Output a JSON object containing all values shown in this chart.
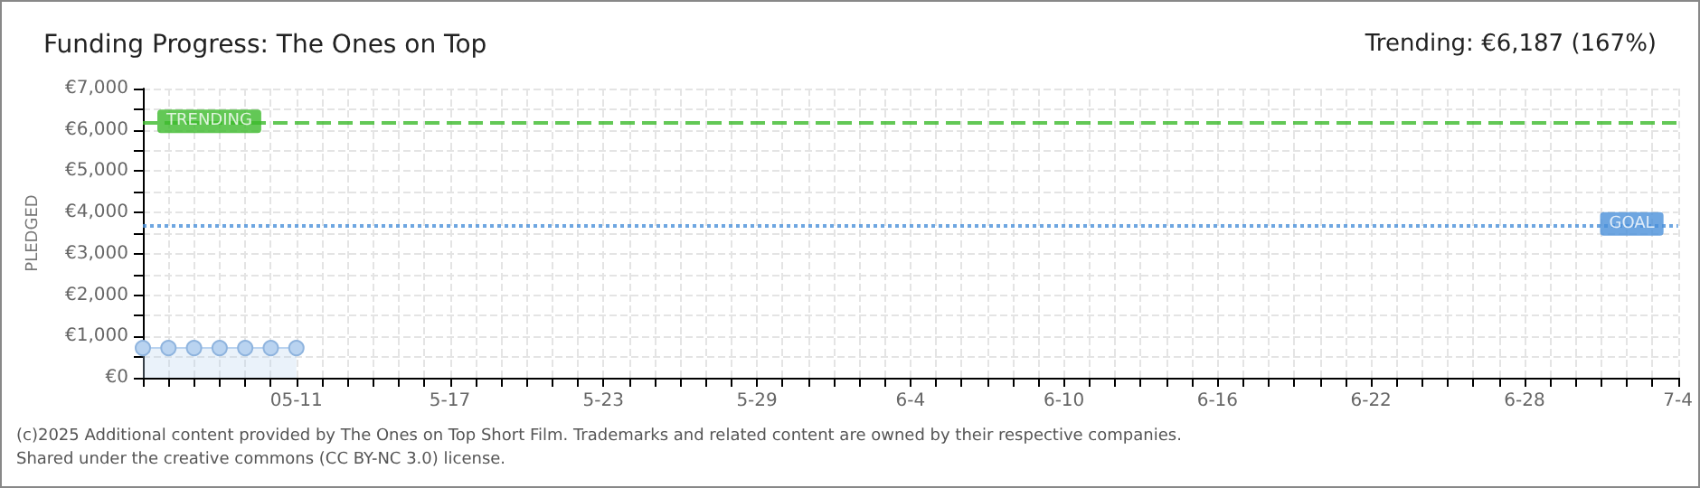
{
  "chart_data": {
    "type": "area",
    "title": "Funding Progress: The Ones on Top",
    "ylabel": "PLEDGED",
    "annotations": [
      "Trending: €6,187 (167%)",
      "(c)2025 Additional content provided by The Ones on Top Short Film. Trademarks and related content are owned by their respective companies.",
      "Shared under the creative commons (CC BY-NC 3.0) license."
    ],
    "x": [
      "--05-05",
      "--05-06",
      "--05-07",
      "--05-08",
      "--05-09",
      "--05-10",
      "--05-11"
    ],
    "series": [
      {
        "color": "#b9d3f0",
        "values": [
          720,
          720,
          720,
          720,
          720,
          720,
          720
        ]
      }
    ],
    "marker": "circle",
    "grid": true,
    "xlim": [
      "--05-05",
      "--07-04"
    ],
    "xticks": [
      {
        "value": "--05-05",
        "label": null
      },
      {
        "value": "--05-06",
        "label": null
      },
      {
        "value": "--05-07",
        "label": null
      },
      {
        "value": "--05-08",
        "label": null
      },
      {
        "value": "--05-09",
        "label": null
      },
      {
        "value": "--05-10",
        "label": null
      },
      {
        "value": "--05-11",
        "label": "05-11"
      },
      {
        "value": "--05-12",
        "label": null
      },
      {
        "value": "--05-13",
        "label": null
      },
      {
        "value": "--05-14",
        "label": null
      },
      {
        "value": "--05-15",
        "label": null
      },
      {
        "value": "--05-16",
        "label": null
      },
      {
        "value": "--05-17",
        "label": "5-17"
      },
      {
        "value": "--05-18",
        "label": null
      },
      {
        "value": "--05-19",
        "label": null
      },
      {
        "value": "--05-20",
        "label": null
      },
      {
        "value": "--05-21",
        "label": null
      },
      {
        "value": "--05-22",
        "label": null
      },
      {
        "value": "--05-23",
        "label": "5-23"
      },
      {
        "value": "--05-24",
        "label": null
      },
      {
        "value": "--05-25",
        "label": null
      },
      {
        "value": "--05-26",
        "label": null
      },
      {
        "value": "--05-27",
        "label": null
      },
      {
        "value": "--05-28",
        "label": null
      },
      {
        "value": "--05-29",
        "label": "5-29"
      },
      {
        "value": "--05-30",
        "label": null
      },
      {
        "value": "--05-31",
        "label": null
      },
      {
        "value": "--06-01",
        "label": null
      },
      {
        "value": "--06-02",
        "label": null
      },
      {
        "value": "--06-03",
        "label": null
      },
      {
        "value": "--06-04",
        "label": "6-4"
      },
      {
        "value": "--06-05",
        "label": null
      },
      {
        "value": "--06-06",
        "label": null
      },
      {
        "value": "--06-07",
        "label": null
      },
      {
        "value": "--06-08",
        "label": null
      },
      {
        "value": "--06-09",
        "label": null
      },
      {
        "value": "--06-10",
        "label": "6-10"
      },
      {
        "value": "--06-11",
        "label": null
      },
      {
        "value": "--06-12",
        "label": null
      },
      {
        "value": "--06-13",
        "label": null
      },
      {
        "value": "--06-14",
        "label": null
      },
      {
        "value": "--06-15",
        "label": null
      },
      {
        "value": "--06-16",
        "label": "6-16"
      },
      {
        "value": "--06-17",
        "label": null
      },
      {
        "value": "--06-18",
        "label": null
      },
      {
        "value": "--06-19",
        "label": null
      },
      {
        "value": "--06-20",
        "label": null
      },
      {
        "value": "--06-21",
        "label": null
      },
      {
        "value": "--06-22",
        "label": "6-22"
      },
      {
        "value": "--06-23",
        "label": null
      },
      {
        "value": "--06-24",
        "label": null
      },
      {
        "value": "--06-25",
        "label": null
      },
      {
        "value": "--06-26",
        "label": null
      },
      {
        "value": "--06-27",
        "label": null
      },
      {
        "value": "--06-28",
        "label": "6-28"
      },
      {
        "value": "--06-29",
        "label": null
      },
      {
        "value": "--06-30",
        "label": null
      },
      {
        "value": "--07-01",
        "label": null
      },
      {
        "value": "--07-02",
        "label": null
      },
      {
        "value": "--07-03",
        "label": null
      },
      {
        "value": "--07-04",
        "label": "7-4"
      }
    ],
    "ylim": [
      0,
      7000
    ],
    "yticks": [
      {
        "value": 0,
        "label": "€0"
      },
      {
        "value": 500,
        "label": null
      },
      {
        "value": 1000,
        "label": "€1,000"
      },
      {
        "value": 1500,
        "label": null
      },
      {
        "value": 2000,
        "label": "€2,000"
      },
      {
        "value": 2500,
        "label": null
      },
      {
        "value": 3000,
        "label": "€3,000"
      },
      {
        "value": 3500,
        "label": null
      },
      {
        "value": 4000,
        "label": "€4,000"
      },
      {
        "value": 4500,
        "label": null
      },
      {
        "value": 5000,
        "label": "€5,000"
      },
      {
        "value": 5500,
        "label": null
      },
      {
        "value": 6000,
        "label": "€6,000"
      },
      {
        "value": 6500,
        "label": null
      },
      {
        "value": 7000,
        "label": "€7,000"
      }
    ],
    "ref_lines": [
      {
        "axis": "y",
        "value": 6187,
        "label": "TRENDING",
        "color": "#3cba2c",
        "line_style": "dashed"
      },
      {
        "axis": "y",
        "value": 3700,
        "label": "GOAL",
        "color": "#4a90d9",
        "line_style": "dotted"
      }
    ]
  }
}
